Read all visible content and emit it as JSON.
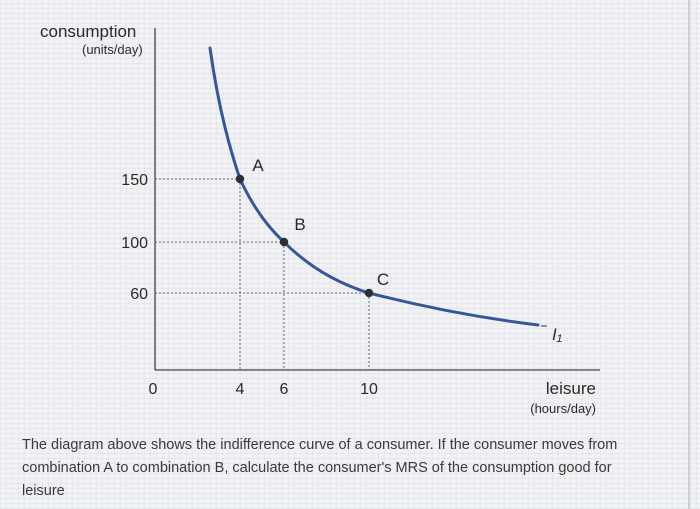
{
  "chart_data": {
    "type": "line",
    "y_axis": {
      "label": "consumption",
      "units": "(units/day)",
      "ticks": [
        150,
        100,
        60
      ]
    },
    "x_axis": {
      "label": "leisure",
      "units": "(hours/day)",
      "ticks": [
        "0",
        "4",
        "6",
        "10"
      ]
    },
    "series": [
      {
        "name": "I₁",
        "curve": "indifference",
        "points": [
          [
            4,
            150
          ],
          [
            6,
            100
          ],
          [
            10,
            60
          ]
        ],
        "color": "#35579a"
      }
    ],
    "points": [
      {
        "label": "A",
        "x": 4,
        "y": 150
      },
      {
        "label": "B",
        "x": 6,
        "y": 100
      },
      {
        "label": "C",
        "x": 10,
        "y": 60
      }
    ],
    "guides": "dotted lines from A, B, C to both axes",
    "grid": false
  },
  "question": "The diagram above shows the indifference curve of a consumer. If the consumer moves from combination A to combination B, calculate the consumer's MRS of the consumption good for leisure"
}
